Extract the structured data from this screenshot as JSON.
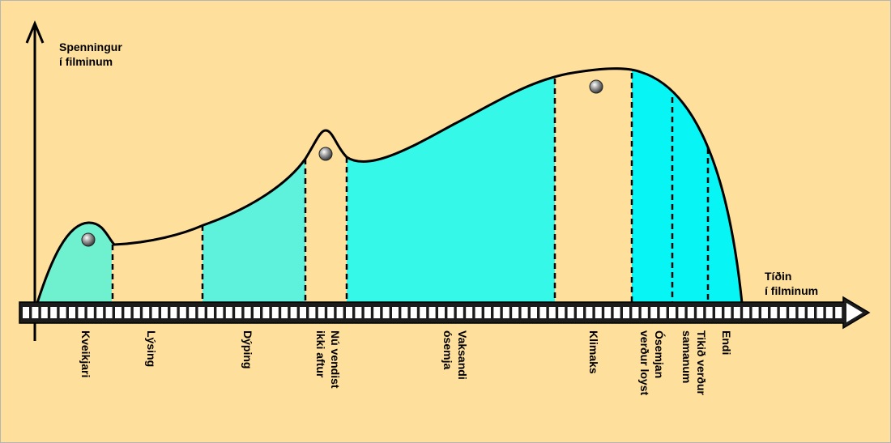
{
  "colors": {
    "background": "#fedf9c",
    "fill_mint": "#6ff0cf",
    "fill_aqua": "#5ef1dc",
    "fill_cyan": "#35f8e8",
    "fill_bright_cyan": "#08f5f5",
    "curve": "#000000",
    "film_strip": "#1c1c1c",
    "film_holes": "#ffffff",
    "marker": "#8f8f8f"
  },
  "y_axis": {
    "label_line1": "Spenningur",
    "label_line2": "í filminum"
  },
  "x_axis": {
    "label_line1": "Tíðin",
    "label_line2": "í filminum",
    "style": "film-strip-arrow"
  },
  "phases": [
    {
      "label_line1": "Kveikjari",
      "label_line2": ""
    },
    {
      "label_line1": "Lýsing",
      "label_line2": ""
    },
    {
      "label_line1": "Dýping",
      "label_line2": ""
    },
    {
      "label_line1": "Nú vendist",
      "label_line2": "ikki aftur"
    },
    {
      "label_line1": "Vaksandi",
      "label_line2": "ósemja"
    },
    {
      "label_line1": "Klimaks",
      "label_line2": ""
    },
    {
      "label_line1": "Ósemjan",
      "label_line2": "verður loyst"
    },
    {
      "label_line1": "Tikið verður",
      "label_line2": "samanum"
    },
    {
      "label_line1": "Endi",
      "label_line2": ""
    }
  ],
  "marker_icon": "sphere-marker-icon"
}
